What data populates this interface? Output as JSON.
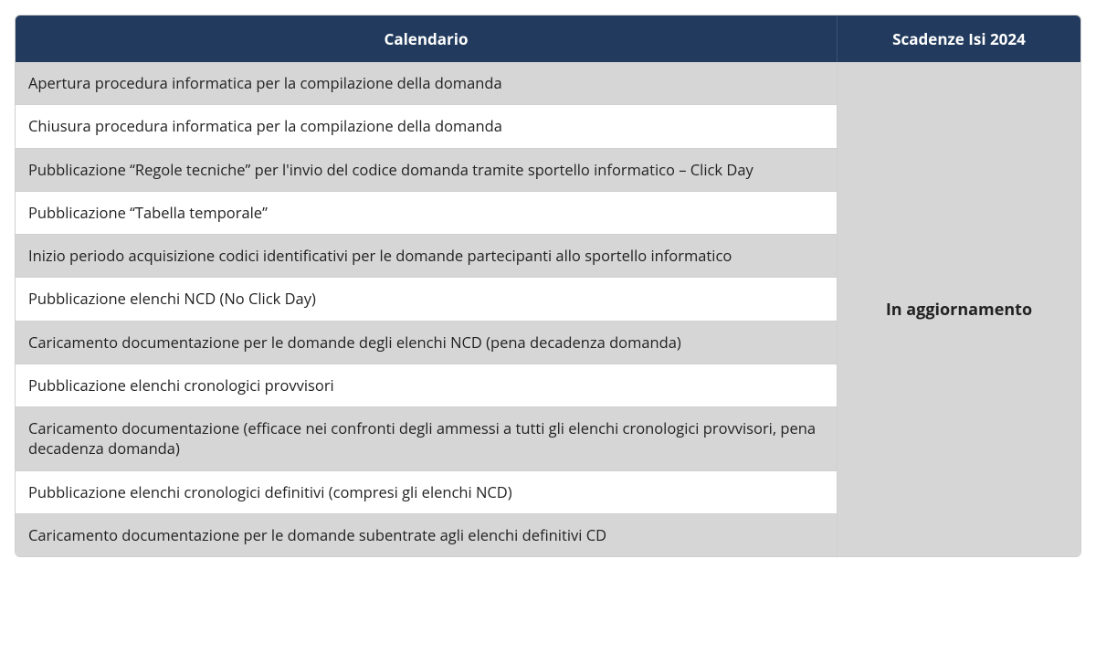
{
  "table": {
    "header": {
      "left": "Calendario",
      "right": "Scadenze Isi 2024"
    },
    "rows": [
      "Apertura procedura informatica per la compilazione della domanda",
      "Chiusura procedura informatica per la compilazione della domanda",
      "Pubblicazione “Regole tecniche” per l'invio del codice domanda tramite sportello informatico – Click Day",
      "Pubblicazione “Tabella temporale”",
      "Inizio periodo acquisizione codici identificativi per le domande partecipanti allo sportello informatico",
      "Pubblicazione elenchi NCD (No Click Day)",
      "Caricamento documentazione per le domande degli elenchi NCD (pena decadenza domanda)",
      "Pubblicazione elenchi cronologici provvisori",
      "Caricamento documentazione (efficace nei confronti degli ammessi a tutti gli elenchi cronologici provvisori, pena decadenza domanda)",
      "Pubblicazione elenchi cronologici definitivi (compresi gli elenchi NCD)",
      "Caricamento documentazione per le domande subentrate agli elenchi definitivi CD"
    ],
    "right_value": "In aggiornamento",
    "colors": {
      "header_bg": "#213a5d",
      "header_text": "#ffffff",
      "row_odd_bg": "#d6d6d6",
      "row_even_bg": "#ffffff",
      "border": "#d0d0d0",
      "text": "#222222"
    },
    "font_sizes": {
      "header": 17,
      "body": 16.5,
      "right_value": 18
    }
  }
}
